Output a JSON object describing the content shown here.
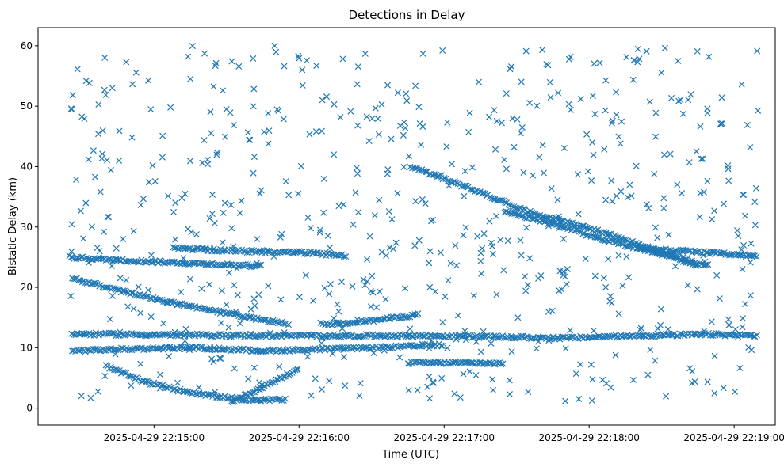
{
  "chart_data": {
    "type": "scatter",
    "title": "Detections in Delay",
    "xlabel": "Time (UTC)",
    "ylabel": "Bistatic Delay (km)",
    "marker": "x",
    "marker_color": "#1f77b4",
    "grid": false,
    "legend": "none",
    "xlim": [
      "2025-04-29 22:14:12",
      "2025-04-29 22:19:17"
    ],
    "ylim": [
      -2.8,
      63
    ],
    "x_ticks": [
      "2025-04-29 22:15:00",
      "2025-04-29 22:16:00",
      "2025-04-29 22:17:00",
      "2025-04-29 22:18:00",
      "2025-04-29 22:19:00"
    ],
    "y_ticks": [
      0,
      10,
      20,
      30,
      40,
      50,
      60
    ],
    "series": [
      {
        "tracks": [
          {
            "x": [
              "2025-04-29 22:14:26",
              "2025-04-29 22:14:50",
              "2025-04-29 22:15:15",
              "2025-04-29 22:15:40",
              "2025-04-29 22:15:55"
            ],
            "y": [
              21.5,
              19.0,
              16.8,
              15.0,
              14.0
            ]
          },
          {
            "x": [
              "2025-04-29 22:16:46",
              "2025-04-29 22:17:10",
              "2025-04-29 22:17:35",
              "2025-04-29 22:18:00",
              "2025-04-29 22:18:25",
              "2025-04-29 22:18:45"
            ],
            "y": [
              40.0,
              36.5,
              32.5,
              29.8,
              26.5,
              23.5
            ]
          },
          {
            "x": [
              "2025-04-29 22:17:25",
              "2025-04-29 22:17:45",
              "2025-04-29 22:18:05",
              "2025-04-29 22:18:30",
              "2025-04-29 22:18:50"
            ],
            "y": [
              32.5,
              30.5,
              28.0,
              25.5,
              23.5
            ]
          },
          {
            "x": [
              "2025-04-29 22:15:08",
              "2025-04-29 22:15:35",
              "2025-04-29 22:16:00",
              "2025-04-29 22:16:20"
            ],
            "y": [
              26.5,
              26.0,
              25.8,
              25.2
            ]
          },
          {
            "x": [
              "2025-04-29 22:18:20",
              "2025-04-29 22:18:40",
              "2025-04-29 22:19:00",
              "2025-04-29 22:19:10"
            ],
            "y": [
              26.5,
              26.0,
              25.5,
              25.0
            ]
          },
          {
            "x": [
              "2025-04-29 22:14:40",
              "2025-04-29 22:14:55",
              "2025-04-29 22:15:10",
              "2025-04-29 22:15:25",
              "2025-04-29 22:15:40",
              "2025-04-29 22:15:55"
            ],
            "y": [
              7.0,
              4.5,
              3.0,
              2.0,
              1.2,
              1.5
            ]
          },
          {
            "x": [
              "2025-04-29 22:15:32",
              "2025-04-29 22:15:45",
              "2025-04-29 22:16:00"
            ],
            "y": [
              1.0,
              3.5,
              6.5
            ]
          },
          {
            "x": [
              "2025-04-29 22:14:26",
              "2025-04-29 22:14:50",
              "2025-04-29 22:15:15",
              "2025-04-29 22:15:50",
              "2025-04-29 22:16:20",
              "2025-04-29 22:16:50",
              "2025-04-29 22:17:20",
              "2025-04-29 22:17:50",
              "2025-04-29 22:18:20",
              "2025-04-29 22:18:50",
              "2025-04-29 22:19:10"
            ],
            "y": [
              12.3,
              12.2,
              12.1,
              12.0,
              12.0,
              12.0,
              11.8,
              11.6,
              12.0,
              12.2,
              12.0
            ]
          },
          {
            "x": [
              "2025-04-29 22:14:26",
              "2025-04-29 22:14:50",
              "2025-04-29 22:15:15",
              "2025-04-29 22:15:45",
              "2025-04-29 22:16:15",
              "2025-04-29 22:16:45",
              "2025-04-29 22:17:00"
            ],
            "y": [
              9.5,
              9.8,
              10.0,
              9.5,
              9.8,
              10.2,
              10.5
            ]
          },
          {
            "x": [
              "2025-04-29 22:16:10",
              "2025-04-29 22:16:30",
              "2025-04-29 22:16:50"
            ],
            "y": [
              13.8,
              14.5,
              15.5
            ]
          },
          {
            "x": [
              "2025-04-29 22:16:45",
              "2025-04-29 22:17:05",
              "2025-04-29 22:17:25"
            ],
            "y": [
              7.5,
              7.5,
              7.4
            ]
          },
          {
            "x": [
              "2025-04-29 22:14:25",
              "2025-04-29 22:14:45",
              "2025-04-29 22:15:15",
              "2025-04-29 22:15:45"
            ],
            "y": [
              25.0,
              24.5,
              24.0,
              23.5
            ]
          }
        ]
      }
    ]
  }
}
